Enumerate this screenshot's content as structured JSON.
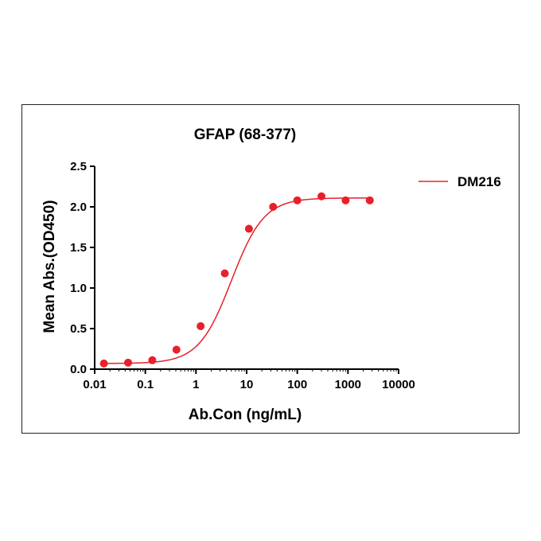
{
  "chart_data": {
    "type": "scatter",
    "title": "GFAP (68-377)",
    "xlabel": "Ab.Con (ng/mL)",
    "ylabel": "Mean Abs.(OD450)",
    "x_scale": "log",
    "xlim": [
      0.01,
      10000
    ],
    "ylim": [
      0,
      2.5
    ],
    "x_ticks": [
      0.01,
      0.1,
      1,
      10,
      100,
      1000,
      10000
    ],
    "x_tick_labels": [
      "0.01",
      "0.1",
      "1",
      "10",
      "100",
      "1000",
      "10000"
    ],
    "y_ticks": [
      0,
      0.5,
      1.0,
      1.5,
      2.0,
      2.5
    ],
    "y_tick_labels": [
      "0.0",
      "0.5",
      "1.0",
      "1.5",
      "2.0",
      "2.5"
    ],
    "grid": false,
    "legend_position": "top-right",
    "series": [
      {
        "name": "DM216",
        "color": "#e8202a",
        "x": [
          0.0152,
          0.0457,
          0.1372,
          0.4115,
          1.2346,
          3.7037,
          11.11,
          33.33,
          100,
          300,
          900,
          2700
        ],
        "y": [
          0.07,
          0.08,
          0.11,
          0.24,
          0.53,
          1.18,
          1.73,
          2.0,
          2.08,
          2.13,
          2.08,
          2.08
        ],
        "fit": {
          "model": "4PL",
          "bottom": 0.07,
          "top": 2.11,
          "ec50": 5.0,
          "hill": 1.35
        }
      }
    ]
  }
}
